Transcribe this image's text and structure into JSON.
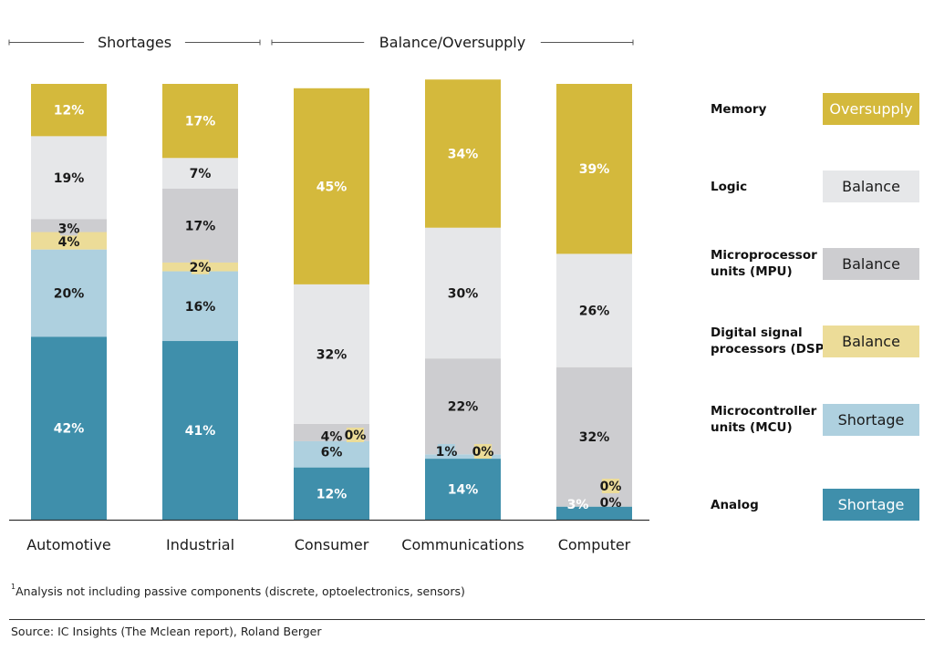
{
  "chart_data": {
    "type": "bar",
    "stacked": true,
    "title": "",
    "xlabel": "",
    "ylabel": "",
    "ylim": [
      0,
      100
    ],
    "unit": "%",
    "categories": [
      "Automotive",
      "Industrial",
      "Consumer",
      "Communications",
      "Computer"
    ],
    "groups": [
      {
        "label": "Shortages",
        "categories": [
          "Automotive",
          "Industrial"
        ]
      },
      {
        "label": "Balance/Oversupply",
        "categories": [
          "Consumer",
          "Communications",
          "Computer"
        ]
      }
    ],
    "series": [
      {
        "name": "Analog",
        "status": "Shortage",
        "color": "#3f8fab",
        "label_color": "#ffffff",
        "values": [
          42,
          41,
          12,
          14,
          3
        ]
      },
      {
        "name": "Microcontroller units (MCU)",
        "name_lines": [
          "Microcontroller",
          "units (MCU)"
        ],
        "status": "Shortage",
        "color": "#aed0df",
        "label_color": "#1a1a1a",
        "values": [
          20,
          16,
          6,
          1,
          0
        ]
      },
      {
        "name": "Digital signal processors (DSP)",
        "name_lines": [
          "Digital signal",
          "processors (DSP)"
        ],
        "status": "Balance",
        "color": "#ecdc98",
        "label_color": "#1a1a1a",
        "values": [
          4,
          2,
          0,
          0,
          0
        ]
      },
      {
        "name": "Microprocessor units (MPU)",
        "name_lines": [
          "Microprocessor",
          "units (MPU)"
        ],
        "status": "Balance",
        "color": "#cdcdd0",
        "label_color": "#1a1a1a",
        "values": [
          3,
          17,
          4,
          22,
          32
        ]
      },
      {
        "name": "Logic",
        "status": "Balance",
        "color": "#e6e7e9",
        "label_color": "#1a1a1a",
        "values": [
          19,
          7,
          32,
          30,
          26
        ]
      },
      {
        "name": "Memory",
        "status": "Oversupply",
        "color": "#d4b93c",
        "label_color": "#ffffff",
        "values": [
          12,
          17,
          45,
          34,
          39
        ]
      }
    ],
    "legend_position": "right",
    "grid": false
  },
  "footnote": {
    "marker": "1",
    "text": "Analysis not including passive components (discrete, optoelectronics, sensors)"
  },
  "source": "Source: IC Insights (The Mclean report), Roland Berger"
}
